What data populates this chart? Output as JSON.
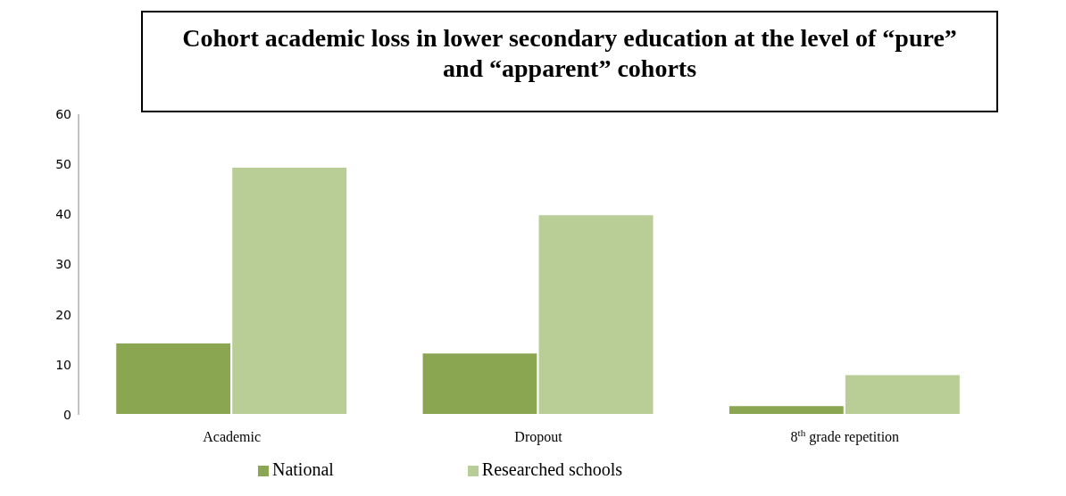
{
  "chart_data": {
    "type": "bar",
    "title": "Cohort academic loss in lower secondary education at the level of “pure” and “apparent” cohorts",
    "categories": [
      "Academic",
      "Dropout",
      "8$^{th}$ grade repetition"
    ],
    "series": [
      {
        "name": "National",
        "color": "#8aa651",
        "values": [
          14.4,
          12.4,
          1.9
        ]
      },
      {
        "name": "Researched schools",
        "color": "#b9ce96",
        "values": [
          49.5,
          40.0,
          8.1
        ]
      }
    ],
    "ylim": [
      0,
      60
    ],
    "yticks": [
      0,
      10,
      20,
      30,
      40,
      50,
      60
    ],
    "grid": false,
    "legend": "bottom"
  }
}
